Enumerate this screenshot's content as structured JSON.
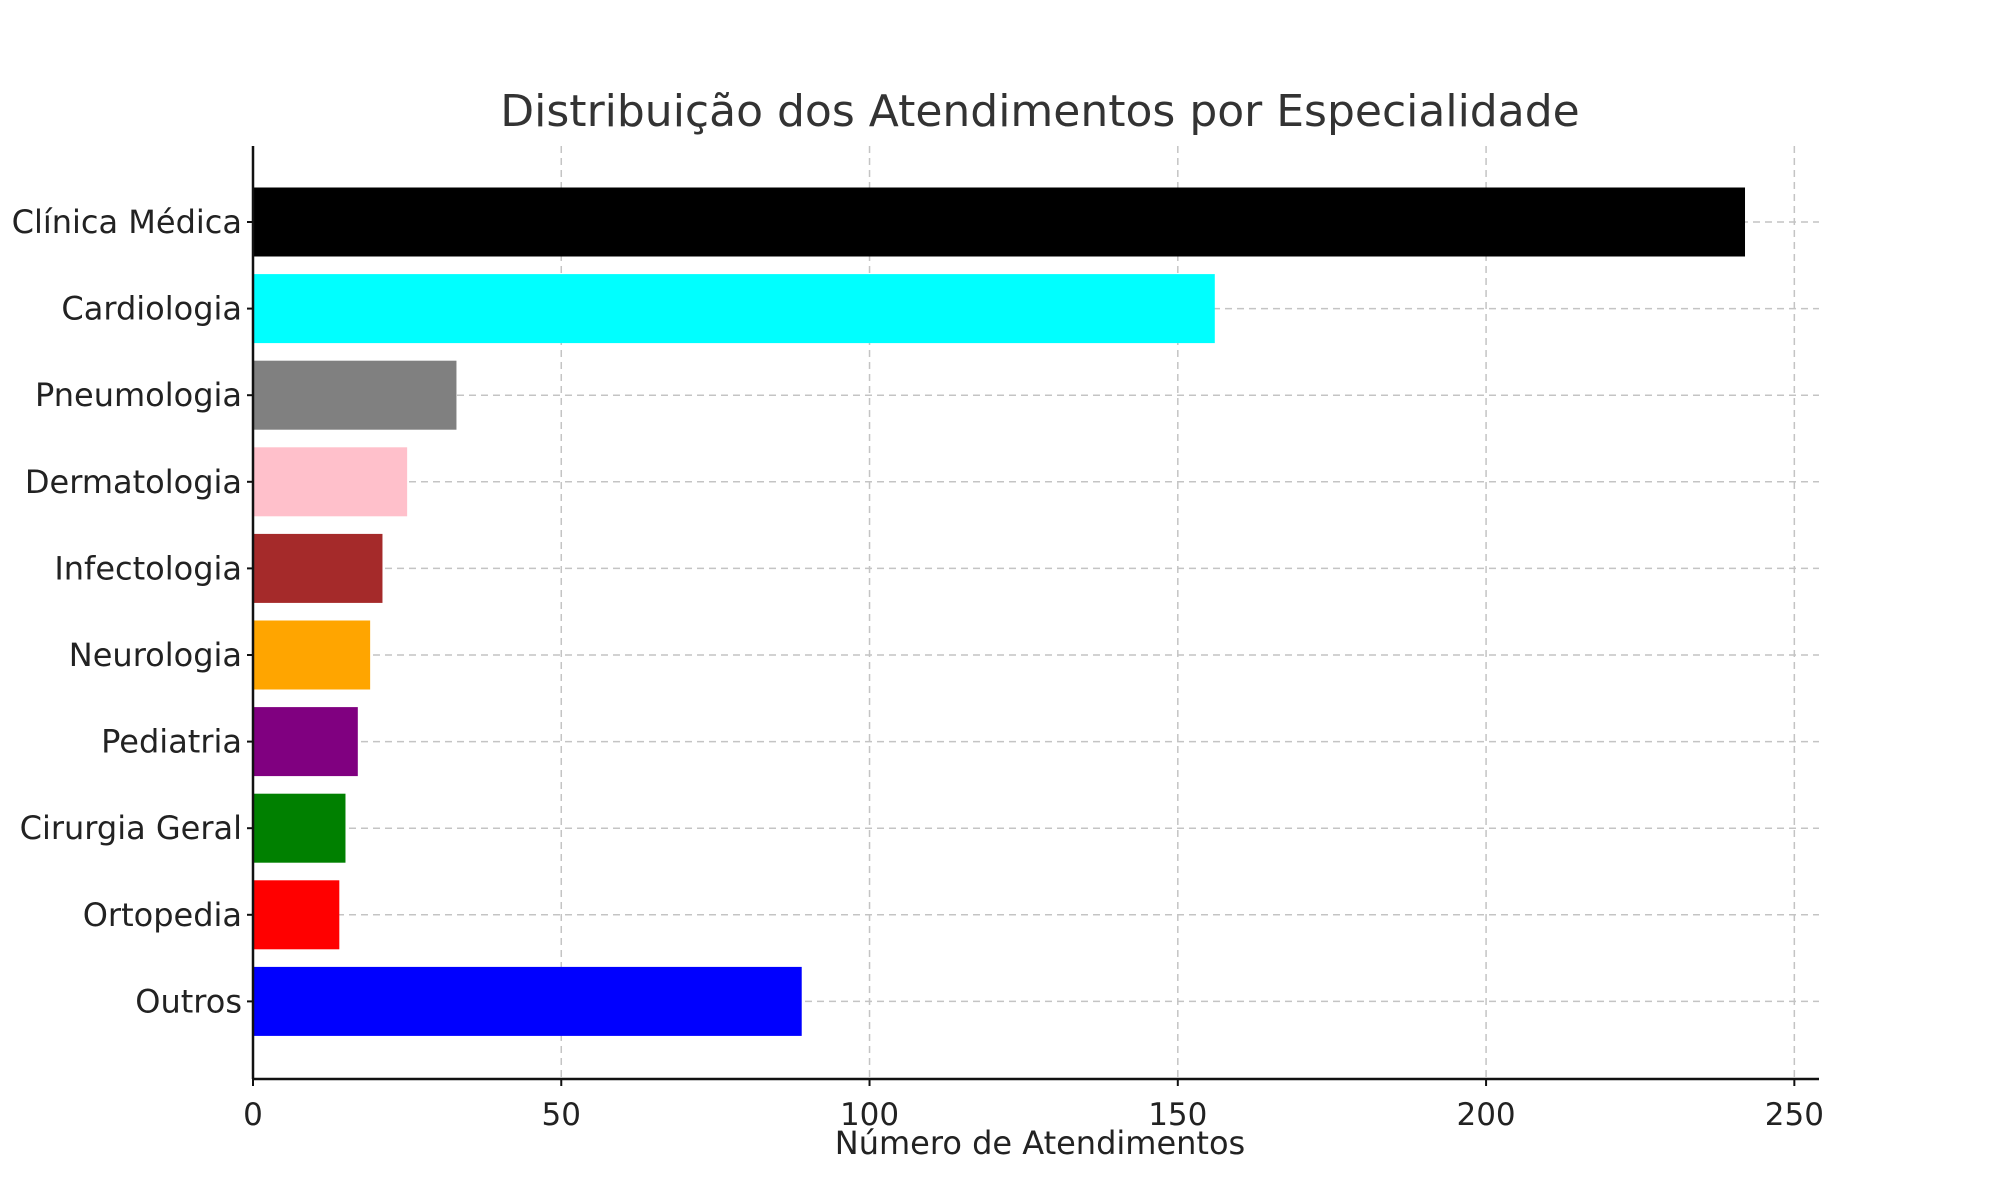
{
  "chart_data": {
    "type": "bar",
    "orientation": "horizontal",
    "title": "Distribuição dos Atendimentos por Especialidade",
    "xlabel": "Número de Atendimentos",
    "ylabel": "",
    "xlim": [
      0,
      254
    ],
    "xticks": [
      0,
      50,
      100,
      150,
      200,
      250
    ],
    "grid": true,
    "categories": [
      "Clínica Médica",
      "Cardiologia",
      "Pneumologia",
      "Dermatologia",
      "Infectologia",
      "Neurologia",
      "Pediatria",
      "Cirurgia Geral",
      "Ortopedia",
      "Outros"
    ],
    "values": [
      242,
      156,
      33,
      25,
      21,
      19,
      17,
      15,
      14,
      89
    ],
    "colors": [
      "#000000",
      "#00ffff",
      "#808080",
      "#ffc0cb",
      "#a52a2a",
      "#ffa500",
      "#800080",
      "#008000",
      "#ff0000",
      "#0000ff"
    ]
  }
}
